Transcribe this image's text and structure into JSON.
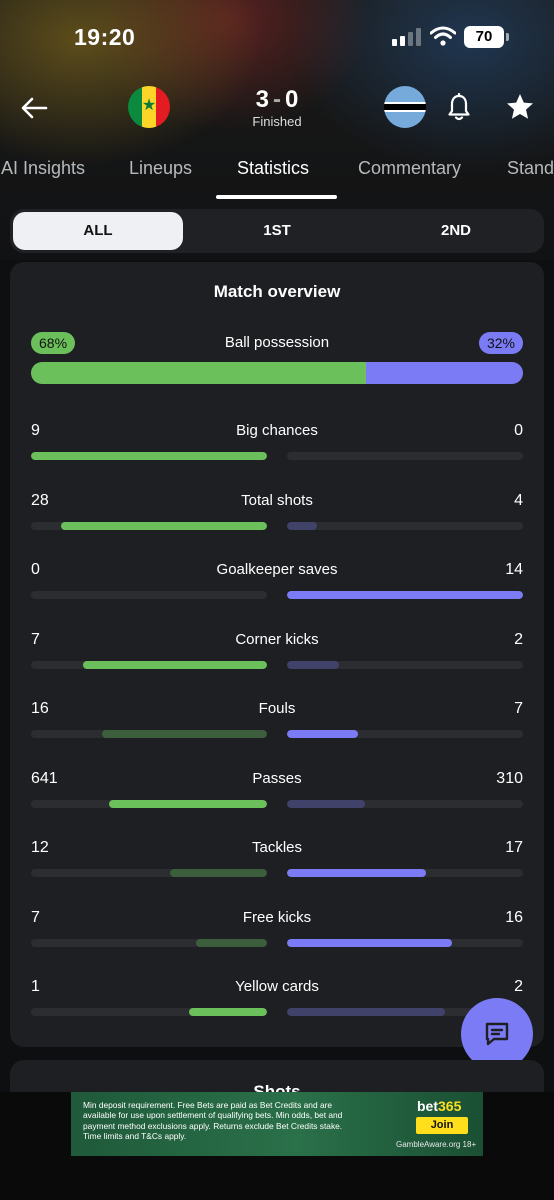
{
  "status_bar": {
    "time": "19:20",
    "battery": "70"
  },
  "match": {
    "home_goals": "3",
    "away_goals": "0",
    "separator": "-",
    "status": "Finished"
  },
  "tabs": [
    "AI Insights",
    "Lineups",
    "Statistics",
    "Commentary",
    "Standings"
  ],
  "active_tab": "Statistics",
  "periods": [
    "ALL",
    "1ST",
    "2ND"
  ],
  "active_period": "ALL",
  "overview": {
    "title": "Match overview",
    "possession": {
      "label": "Ball possession",
      "home": "68%",
      "away": "32%",
      "home_value": 68,
      "away_value": 32
    },
    "stats": [
      {
        "label": "Big chances",
        "home": "9",
        "away": "0",
        "home_fill": 1.0,
        "away_fill": 0.0,
        "home_winner": true,
        "away_winner": false
      },
      {
        "label": "Total shots",
        "home": "28",
        "away": "4",
        "home_fill": 0.875,
        "away_fill": 0.125,
        "home_winner": true,
        "away_winner": false
      },
      {
        "label": "Goalkeeper saves",
        "home": "0",
        "away": "14",
        "home_fill": 0.0,
        "away_fill": 1.0,
        "home_winner": false,
        "away_winner": true
      },
      {
        "label": "Corner kicks",
        "home": "7",
        "away": "2",
        "home_fill": 0.78,
        "away_fill": 0.22,
        "home_winner": true,
        "away_winner": false
      },
      {
        "label": "Fouls",
        "home": "16",
        "away": "7",
        "home_fill": 0.7,
        "away_fill": 0.3,
        "home_winner": false,
        "away_winner": true
      },
      {
        "label": "Passes",
        "home": "641",
        "away": "310",
        "home_fill": 0.67,
        "away_fill": 0.33,
        "home_winner": true,
        "away_winner": false
      },
      {
        "label": "Tackles",
        "home": "12",
        "away": "17",
        "home_fill": 0.41,
        "away_fill": 0.59,
        "home_winner": false,
        "away_winner": true
      },
      {
        "label": "Free kicks",
        "home": "7",
        "away": "16",
        "home_fill": 0.3,
        "away_fill": 0.7,
        "home_winner": false,
        "away_winner": true
      },
      {
        "label": "Yellow cards",
        "home": "1",
        "away": "2",
        "home_fill": 0.33,
        "away_fill": 0.67,
        "home_winner": true,
        "away_winner": false
      }
    ]
  },
  "next_section_title": "Shots",
  "ad": {
    "text": "Min deposit requirement. Free Bets are paid as Bet Credits and are available for use upon settlement of qualifying bets. Min odds, bet and payment method exclusions apply. Returns exclude Bet Credits stake. Time limits and T&Cs apply.",
    "brand_main": "bet",
    "brand_accent": "365",
    "button": "Join",
    "footer": "GambleAware.org 18+"
  },
  "colors": {
    "home": "#6cc05b",
    "away": "#7b7cf5",
    "home_dim": "#3c5e3c",
    "away_dim": "#40426a",
    "card": "#1d1f23"
  }
}
